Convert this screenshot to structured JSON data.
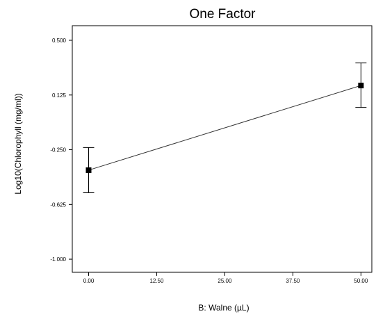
{
  "chart_data": {
    "type": "line",
    "title": "One Factor",
    "xlabel": "B: Walne (µL)",
    "ylabel": "Log10(Chlorophyll (mg/ml))",
    "xlim": [
      -3,
      52
    ],
    "ylim": [
      -1.09,
      0.6
    ],
    "x_ticks": [
      "0.00",
      "12.50",
      "25.00",
      "37.50",
      "50.00"
    ],
    "y_ticks": [
      "0.500",
      "0.125",
      "-0.250",
      "-0.625",
      "-1.000"
    ],
    "grid": false,
    "legend": "none",
    "series": [
      {
        "points": [
          {
            "x": 0,
            "y": -0.39,
            "err_low": -0.545,
            "err_high": -0.235
          },
          {
            "x": 50,
            "y": 0.19,
            "err_low": 0.04,
            "err_high": 0.345
          }
        ]
      }
    ],
    "colors": {
      "line": "#333333",
      "marker": "#000000",
      "frame": "#000000"
    }
  }
}
